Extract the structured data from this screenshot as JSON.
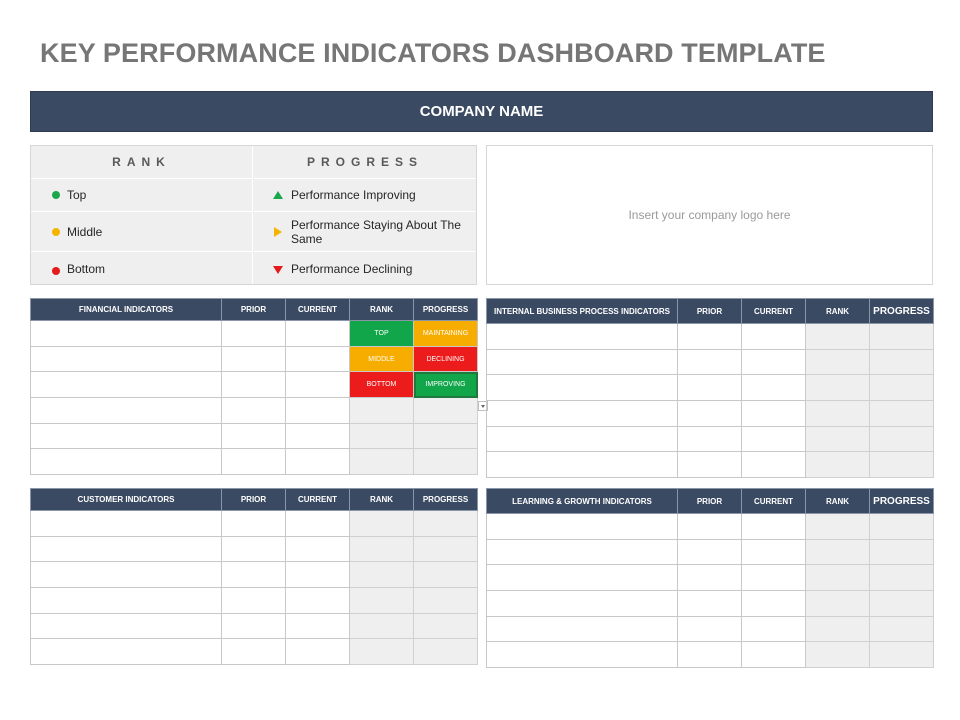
{
  "title": "KEY PERFORMANCE INDICATORS DASHBOARD TEMPLATE",
  "company_name": "COMPANY NAME",
  "legend": {
    "rank_header": "RANK",
    "progress_header": "PROGRESS",
    "rank_items": [
      {
        "label": "Top",
        "color": "#1aa84a"
      },
      {
        "label": "Middle",
        "color": "#f5b400"
      },
      {
        "label": "Bottom",
        "color": "#e31b1b"
      }
    ],
    "progress_items": [
      {
        "label": "Performance Improving",
        "icon": "triangle-up-icon",
        "color": "#1aa84a"
      },
      {
        "label": "Performance Staying About The Same",
        "icon": "triangle-right-icon",
        "color": "#f5b400"
      },
      {
        "label": "Performance Declining",
        "icon": "triangle-down-icon",
        "color": "#e31b1b"
      }
    ]
  },
  "logo_placeholder": "Insert your company logo here",
  "tables": {
    "financial": {
      "headers": [
        "FINANCIAL INDICATORS",
        "PRIOR",
        "CURRENT",
        "RANK",
        "PROGRESS"
      ],
      "dropdown_rows": [
        {
          "rank": "TOP",
          "progress": "MAINTAINING"
        },
        {
          "rank": "MIDDLE",
          "progress": "DECLINING"
        },
        {
          "rank": "BOTTOM",
          "progress": "IMPROVING"
        }
      ]
    },
    "internal": {
      "headers": [
        "INTERNAL BUSINESS PROCESS INDICATORS",
        "PRIOR",
        "CURRENT",
        "RANK",
        "PROGRESS"
      ]
    },
    "customer": {
      "headers": [
        "CUSTOMER INDICATORS",
        "PRIOR",
        "CURRENT",
        "RANK",
        "PROGRESS"
      ]
    },
    "learning": {
      "headers": [
        "LEARNING & GROWTH INDICATORS",
        "PRIOR",
        "CURRENT",
        "RANK",
        "PROGRESS"
      ]
    }
  },
  "colors": {
    "header_navy": "#3b4a63",
    "green": "#12a64b",
    "yellow": "#f7ad00",
    "red": "#ec1c1c",
    "grey_cell": "#efefef"
  }
}
